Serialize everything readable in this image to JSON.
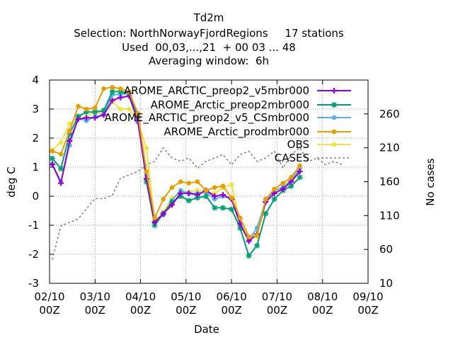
{
  "chart_data": {
    "type": "line",
    "title_lines": [
      "Td2m",
      "Selection: NorthNorwayFjordRegions     17 stations",
      "Used  00,03,...,21  + 00 03 ... 48",
      "Averaging window:  6h"
    ],
    "xlabel": "Date",
    "ylabel": "deg C",
    "y2label": "No cases",
    "xlim": [
      0,
      7
    ],
    "ylim": [
      -3,
      4
    ],
    "y2lim": [
      10,
      310
    ],
    "x_ticks": [
      {
        "v": 0,
        "l1": "02/10",
        "l2": "00Z"
      },
      {
        "v": 1,
        "l1": "03/10",
        "l2": "00Z"
      },
      {
        "v": 2,
        "l1": "04/10",
        "l2": "00Z"
      },
      {
        "v": 3,
        "l1": "05/10",
        "l2": "00Z"
      },
      {
        "v": 4,
        "l1": "06/10",
        "l2": "00Z"
      },
      {
        "v": 5,
        "l1": "07/10",
        "l2": "00Z"
      },
      {
        "v": 6,
        "l1": "08/10",
        "l2": "00Z"
      },
      {
        "v": 7,
        "l1": "09/10",
        "l2": "00Z"
      }
    ],
    "y_ticks": [
      -3,
      -2,
      -1,
      0,
      1,
      2,
      3,
      4
    ],
    "y2_ticks": [
      10,
      60,
      110,
      160,
      210,
      260
    ],
    "grid": true,
    "legend_position": "top-right",
    "x": [
      0.06,
      0.25,
      0.44,
      0.63,
      0.81,
      1.0,
      1.19,
      1.38,
      1.56,
      1.75,
      1.94,
      2.13,
      2.31,
      2.5,
      2.69,
      2.88,
      3.06,
      3.25,
      3.44,
      3.63,
      3.81,
      4.0,
      4.19,
      4.38,
      4.56,
      4.75,
      4.94,
      5.13,
      5.31,
      5.5,
      5.69,
      5.88,
      6.06,
      6.25,
      6.44
    ],
    "series": [
      {
        "name": "AROME_ARCTIC_preop2_v5mbr000",
        "color": "#9400d3",
        "marker": "plus",
        "values": [
          1.1,
          0.45,
          1.9,
          2.65,
          2.7,
          2.7,
          2.8,
          3.3,
          3.4,
          3.45,
          2.6,
          0.6,
          -0.9,
          -0.6,
          -0.3,
          0.1,
          0.1,
          0.05,
          0.2,
          0.0,
          0.05,
          -0.1,
          -0.95,
          -1.55,
          -1.3,
          -0.2,
          0.1,
          0.25,
          0.5,
          0.85,
          null,
          null,
          null,
          null,
          null
        ]
      },
      {
        "name": "AROME_Arctic_preop2mbr000",
        "color": "#009e73",
        "marker": "star",
        "values": [
          1.3,
          0.95,
          2.15,
          2.75,
          2.9,
          2.9,
          2.95,
          3.6,
          3.6,
          3.55,
          2.75,
          0.5,
          -1.0,
          -0.6,
          -0.2,
          0.0,
          -0.15,
          -0.05,
          0.0,
          -0.4,
          -0.4,
          -0.45,
          -1.1,
          -2.05,
          -1.7,
          -0.6,
          -0.1,
          0.2,
          0.35,
          0.65,
          null,
          null,
          null,
          null,
          null
        ]
      },
      {
        "name": "AROME_ARCTIC_preop2_v5_CSmbr000",
        "color": "#56b4e9",
        "marker": "dot",
        "values": [
          1.1,
          0.5,
          1.75,
          2.7,
          2.6,
          2.75,
          2.8,
          3.5,
          3.5,
          3.55,
          2.55,
          0.7,
          -0.85,
          -0.65,
          -0.15,
          0.2,
          0.1,
          0.1,
          0.15,
          -0.1,
          0.0,
          -0.1,
          -1.0,
          -1.5,
          -1.1,
          -0.15,
          0.2,
          0.3,
          0.55,
          0.95,
          null,
          null,
          null,
          null,
          null
        ]
      },
      {
        "name": "AROME_Arctic_prodmbr000",
        "color": "#e69f00",
        "marker": "dot",
        "values": [
          1.55,
          1.45,
          2.25,
          3.1,
          3.0,
          3.05,
          3.7,
          3.75,
          3.7,
          3.6,
          2.85,
          0.85,
          -0.75,
          -0.1,
          0.3,
          0.5,
          0.45,
          0.5,
          0.2,
          0.3,
          0.35,
          -0.05,
          -0.75,
          -1.4,
          -1.35,
          -0.1,
          0.25,
          0.45,
          0.65,
          1.05,
          null,
          null,
          null,
          null,
          null
        ]
      },
      {
        "name": "OBS",
        "color": "#f0e442",
        "marker": "dot",
        "values": [
          1.6,
          1.85,
          2.5,
          2.7,
          2.7,
          2.95,
          2.8,
          3.25,
          3.0,
          3.0,
          2.6,
          1.65,
          -0.85,
          -0.55,
          -0.05,
          0.15,
          0.15,
          0.2,
          0.15,
          0.1,
          0.3,
          0.4,
          -0.95,
          -1.4,
          -1.4,
          -0.2,
          0.1,
          0.3,
          0.6,
          1.0,
          null,
          null,
          null,
          null,
          null
        ]
      },
      {
        "name": "CASES",
        "color": "#808080",
        "axis": "y2",
        "style": "dashed",
        "values": [
          45,
          95,
          100,
          105,
          120,
          135,
          135,
          140,
          165,
          170,
          175,
          185,
          190,
          210,
          195,
          190,
          195,
          180,
          190,
          195,
          200,
          185,
          200,
          205,
          190,
          195,
          205,
          180,
          200,
          210,
          190,
          195,
          185,
          190,
          185
        ]
      }
    ]
  }
}
